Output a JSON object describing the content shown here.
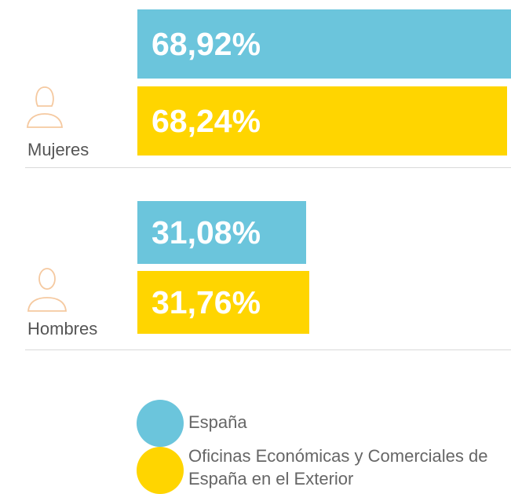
{
  "chart_data": {
    "type": "bar",
    "orientation": "horizontal",
    "categories": [
      "Mujeres",
      "Hombres"
    ],
    "series": [
      {
        "name": "España",
        "color": "#6bc5dc",
        "values": [
          68.92,
          31.08
        ],
        "value_labels": [
          "68,92%",
          "31,08%"
        ]
      },
      {
        "name": "Oficinas Económicas y Comerciales de España en el Exterior",
        "color": "#ffd500",
        "values": [
          68.24,
          31.76
        ],
        "value_labels": [
          "68,24%",
          "31,76%"
        ]
      }
    ]
  }
}
